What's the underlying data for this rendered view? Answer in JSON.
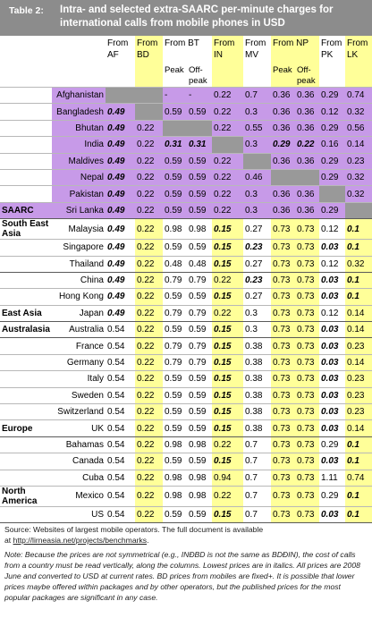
{
  "title": {
    "label": "Table 2:",
    "text": "Intra- and selected extra-SAARC per-minute charges for international calls from mobile phones in USD"
  },
  "columns": {
    "from": "From",
    "codes": [
      "AF",
      "BD",
      "BT",
      "IN",
      "MV",
      "NP",
      "PK",
      "LK"
    ],
    "peak": "Peak",
    "off_peak": "Off-peak"
  },
  "groups": {
    "saarc": "SAARC",
    "sea": "South East Asia",
    "ea": "East Asia",
    "au": "Australasia",
    "eu": "Europe",
    "na": "North America"
  },
  "rows": [
    {
      "country": "Afghanistan",
      "af": "",
      "bd": "",
      "bt_p": "-",
      "bt_o": "-",
      "in": "0.22",
      "mv": "0.7",
      "np_p": "0.36",
      "np_o": "0.36",
      "pk": "0.29",
      "lk": "0.74"
    },
    {
      "country": "Bangladesh",
      "af": "0.49",
      "bd": "",
      "bt_p": "0.59",
      "bt_o": "0.59",
      "in": "0.22",
      "mv": "0.3",
      "np_p": "0.36",
      "np_o": "0.36",
      "pk": "0.12",
      "lk": "0.32"
    },
    {
      "country": "Bhutan",
      "af": "0.49",
      "bd": "0.22",
      "bt_p": "",
      "bt_o": "",
      "in": "0.22",
      "mv": "0.55",
      "np_p": "0.36",
      "np_o": "0.36",
      "pk": "0.29",
      "lk": "0.56"
    },
    {
      "country": "India",
      "af": "0.49",
      "bd": "0.22",
      "bt_p": "0.31",
      "bt_o": "0.31",
      "in": "",
      "mv": "0.3",
      "np_p": "0.29",
      "np_o": "0.22",
      "pk": "0.16",
      "lk": "0.14"
    },
    {
      "country": "Maldives",
      "af": "0.49",
      "bd": "0.22",
      "bt_p": "0.59",
      "bt_o": "0.59",
      "in": "0.22",
      "mv": "",
      "np_p": "0.36",
      "np_o": "0.36",
      "pk": "0.29",
      "lk": "0.23"
    },
    {
      "country": "Nepal",
      "af": "0.49",
      "bd": "0.22",
      "bt_p": "0.59",
      "bt_o": "0.59",
      "in": "0.22",
      "mv": "0.46",
      "np_p": "",
      "np_o": "",
      "pk": "0.29",
      "lk": "0.32"
    },
    {
      "country": "Pakistan",
      "af": "0.49",
      "bd": "0.22",
      "bt_p": "0.59",
      "bt_o": "0.59",
      "in": "0.22",
      "mv": "0.3",
      "np_p": "0.36",
      "np_o": "0.36",
      "pk": "",
      "lk": "0.32"
    },
    {
      "country": "Sri Lanka",
      "af": "0.49",
      "bd": "0.22",
      "bt_p": "0.59",
      "bt_o": "0.59",
      "in": "0.22",
      "mv": "0.3",
      "np_p": "0.36",
      "np_o": "0.36",
      "pk": "0.29",
      "lk": ""
    },
    {
      "country": "Malaysia",
      "af": "0.49",
      "bd": "0.22",
      "bt_p": "0.98",
      "bt_o": "0.98",
      "in": "0.15",
      "mv": "0.27",
      "np_p": "0.73",
      "np_o": "0.73",
      "pk": "0.12",
      "lk": "0.1"
    },
    {
      "country": "Singapore",
      "af": "0.49",
      "bd": "0.22",
      "bt_p": "0.59",
      "bt_o": "0.59",
      "in": "0.15",
      "mv": "0.23",
      "np_p": "0.73",
      "np_o": "0.73",
      "pk": "0.03",
      "lk": "0.1"
    },
    {
      "country": "Thailand",
      "af": "0.49",
      "bd": "0.22",
      "bt_p": "0.48",
      "bt_o": "0.48",
      "in": "0.15",
      "mv": "0.27",
      "np_p": "0.73",
      "np_o": "0.73",
      "pk": "0.12",
      "lk": "0.32"
    },
    {
      "country": "China",
      "af": "0.49",
      "bd": "0.22",
      "bt_p": "0.79",
      "bt_o": "0.79",
      "in": "0.22",
      "mv": "0.23",
      "np_p": "0.73",
      "np_o": "0.73",
      "pk": "0.03",
      "lk": "0.1"
    },
    {
      "country": "Hong Kong",
      "af": "0.49",
      "bd": "0.22",
      "bt_p": "0.59",
      "bt_o": "0.59",
      "in": "0.15",
      "mv": "0.27",
      "np_p": "0.73",
      "np_o": "0.73",
      "pk": "0.03",
      "lk": "0.1"
    },
    {
      "country": "Japan",
      "af": "0.49",
      "bd": "0.22",
      "bt_p": "0.79",
      "bt_o": "0.79",
      "in": "0.22",
      "mv": "0.3",
      "np_p": "0.73",
      "np_o": "0.73",
      "pk": "0.12",
      "lk": "0.14"
    },
    {
      "country": "Australia",
      "af": "0.54",
      "bd": "0.22",
      "bt_p": "0.59",
      "bt_o": "0.59",
      "in": "0.15",
      "mv": "0.3",
      "np_p": "0.73",
      "np_o": "0.73",
      "pk": "0.03",
      "lk": "0.14"
    },
    {
      "country": "France",
      "af": "0.54",
      "bd": "0.22",
      "bt_p": "0.79",
      "bt_o": "0.79",
      "in": "0.15",
      "mv": "0.38",
      "np_p": "0.73",
      "np_o": "0.73",
      "pk": "0.03",
      "lk": "0.23"
    },
    {
      "country": "Germany",
      "af": "0.54",
      "bd": "0.22",
      "bt_p": "0.79",
      "bt_o": "0.79",
      "in": "0.15",
      "mv": "0.38",
      "np_p": "0.73",
      "np_o": "0.73",
      "pk": "0.03",
      "lk": "0.14"
    },
    {
      "country": "Italy",
      "af": "0.54",
      "bd": "0.22",
      "bt_p": "0.59",
      "bt_o": "0.59",
      "in": "0.15",
      "mv": "0.38",
      "np_p": "0.73",
      "np_o": "0.73",
      "pk": "0.03",
      "lk": "0.23"
    },
    {
      "country": "Sweden",
      "af": "0.54",
      "bd": "0.22",
      "bt_p": "0.59",
      "bt_o": "0.59",
      "in": "0.15",
      "mv": "0.38",
      "np_p": "0.73",
      "np_o": "0.73",
      "pk": "0.03",
      "lk": "0.23"
    },
    {
      "country": "Switzerland",
      "af": "0.54",
      "bd": "0.22",
      "bt_p": "0.59",
      "bt_o": "0.59",
      "in": "0.15",
      "mv": "0.38",
      "np_p": "0.73",
      "np_o": "0.73",
      "pk": "0.03",
      "lk": "0.23"
    },
    {
      "country": "UK",
      "af": "0.54",
      "bd": "0.22",
      "bt_p": "0.59",
      "bt_o": "0.59",
      "in": "0.15",
      "mv": "0.38",
      "np_p": "0.73",
      "np_o": "0.73",
      "pk": "0.03",
      "lk": "0.14"
    },
    {
      "country": "Bahamas",
      "af": "0.54",
      "bd": "0.22",
      "bt_p": "0.98",
      "bt_o": "0.98",
      "in": "0.22",
      "mv": "0.7",
      "np_p": "0.73",
      "np_o": "0.73",
      "pk": "0.29",
      "lk": "0.1"
    },
    {
      "country": "Canada",
      "af": "0.54",
      "bd": "0.22",
      "bt_p": "0.59",
      "bt_o": "0.59",
      "in": "0.15",
      "mv": "0.7",
      "np_p": "0.73",
      "np_o": "0.73",
      "pk": "0.03",
      "lk": "0.1"
    },
    {
      "country": "Cuba",
      "af": "0.54",
      "bd": "0.22",
      "bt_p": "0.98",
      "bt_o": "0.98",
      "in": "0.94",
      "mv": "0.7",
      "np_p": "0.73",
      "np_o": "0.73",
      "pk": "1.11",
      "lk": "0.74"
    },
    {
      "country": "Mexico",
      "af": "0.54",
      "bd": "0.22",
      "bt_p": "0.98",
      "bt_o": "0.98",
      "in": "0.22",
      "mv": "0.7",
      "np_p": "0.73",
      "np_o": "0.73",
      "pk": "0.29",
      "lk": "0.1"
    },
    {
      "country": "US",
      "af": "0.54",
      "bd": "0.22",
      "bt_p": "0.59",
      "bt_o": "0.59",
      "in": "0.15",
      "mv": "0.7",
      "np_p": "0.73",
      "np_o": "0.73",
      "pk": "0.03",
      "lk": "0.1"
    }
  ],
  "notes": {
    "source": "Source: Websites of largest mobile operators. The full document is available",
    "source_link_prefix": "at ",
    "source_link": "http://lirneasia.net/projects/benchmarks",
    "source_link_suffix": ".",
    "note": "Note: Because the prices are not symmetrical (e.g., INÐBD is not the same as BDÐIN), the cost of calls from a country must be read vertically, along the columns. Lowest prices are in italics. All prices are 2008 June and converted to USD at current rates. BD prices from mobiles are fixed+. It is possible that lower prices maybe offered within packages and by other operators, but the published prices for the most popular packages are significant in any case."
  },
  "colors": {
    "saarc_band": "#c79ae8",
    "highlight": "#ffff99",
    "diagonal": "#999999",
    "title_bar": "#8c8c8c"
  }
}
